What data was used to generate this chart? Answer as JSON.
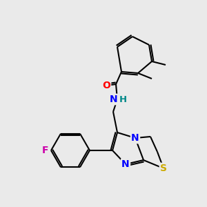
{
  "bg_color": "#eaeaea",
  "bond_color": "#000000",
  "atom_colors": {
    "O": "#ff0000",
    "N": "#0000ff",
    "S": "#ccaa00",
    "F": "#cc00aa",
    "H": "#008888",
    "C": "#000000"
  }
}
